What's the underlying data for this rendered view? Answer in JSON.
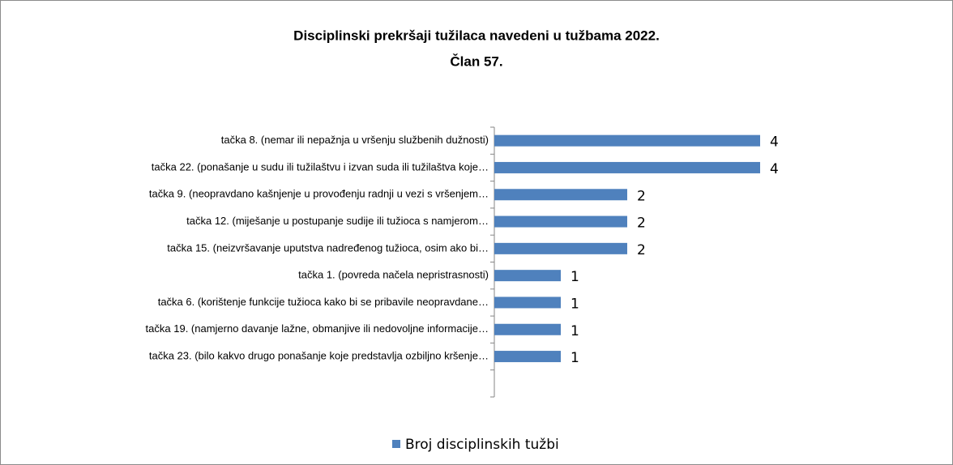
{
  "chart_data": {
    "type": "bar",
    "orientation": "horizontal",
    "title": [
      "Disciplinski prekršaji tužilaca navedeni u tužbama 2022.",
      "Član 57."
    ],
    "categories": [
      "tačka 8. (nemar ili nepažnja u vršenju službenih dužnosti)",
      "tačka 22. (ponašanje u sudu ili tužilaštvu i izvan suda ili tužilaštva koje…",
      "tačka 9. (neopravdano kašnjenje u provođenju radnji u vezi s vršenjem…",
      "tačka 12. (miješanje u postupanje  sudije ili tužioca s namjerom…",
      "tačka 15. (neizvršavanje uputstva nadređenog tužioca, osim ako bi…",
      "tačka 1. (povreda načela nepristrasnosti)",
      "tačka 6. (korištenje funkcije tužioca kako bi se pribavile neopravdane…",
      "tačka 19. (namjerno davanje lažne, obmanjive ili nedovoljne informacije…",
      "tačka 23. (bilo kakvo drugo ponašanje koje predstavlja ozbiljno kršenje…",
      null
    ],
    "series": [
      {
        "name": "Broj disciplinskih tužbi",
        "color": "#4f81bd",
        "values": [
          4,
          4,
          2,
          2,
          2,
          1,
          1,
          1,
          1,
          null
        ]
      }
    ],
    "xlim": [
      0,
      5
    ],
    "legend": "bottom"
  }
}
